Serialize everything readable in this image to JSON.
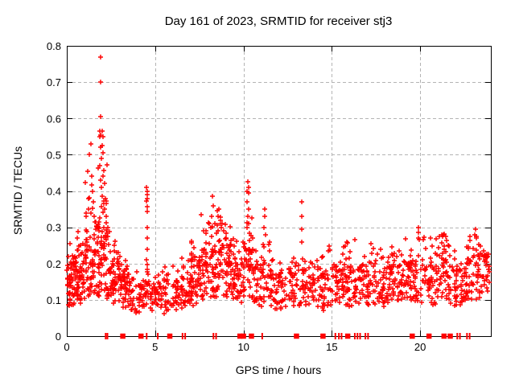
{
  "page": {
    "background": "#ffffff"
  },
  "chart_data": {
    "type": "scatter",
    "title": "Day 161 of 2023, SRMTID for receiver stj3",
    "xlabel": "GPS time / hours",
    "ylabel": "SRMTID / TECUs",
    "xlim": [
      0,
      24
    ],
    "ylim": [
      0,
      0.8
    ],
    "xticks": [
      0,
      5,
      10,
      15,
      20
    ],
    "xtick_labels": [
      "0",
      "5",
      "10",
      "15",
      "20"
    ],
    "yticks": [
      0,
      0.1,
      0.2,
      0.3,
      0.4,
      0.5,
      0.6,
      0.7,
      0.8
    ],
    "ytick_labels": [
      "0",
      "0.1",
      "0.2",
      "0.3",
      "0.4",
      "0.5",
      "0.6",
      "0.7",
      "0.8"
    ],
    "grid": true,
    "legend": false,
    "marker": {
      "shape": "plus",
      "color": "#ff0000",
      "size": 7
    },
    "grid_color": "#b4b4b4",
    "border_color": "#000000",
    "seed": 42,
    "outlier_points": [
      [
        1.9,
        0.77
      ],
      [
        1.9,
        0.7
      ],
      [
        1.9,
        0.605
      ],
      [
        1.88,
        0.565
      ],
      [
        1.93,
        0.555
      ],
      [
        1.86,
        0.55
      ],
      [
        1.9,
        0.52
      ],
      [
        1.36,
        0.53
      ],
      [
        1.29,
        0.5
      ],
      [
        1.17,
        0.455
      ],
      [
        1.06,
        0.424
      ],
      [
        1.4,
        0.44
      ],
      [
        1.45,
        0.4
      ],
      [
        1.21,
        0.38
      ],
      [
        1.5,
        0.37
      ],
      [
        1.25,
        0.35
      ],
      [
        1.38,
        0.34
      ],
      [
        1.1,
        0.33
      ],
      [
        2.02,
        0.565
      ],
      [
        2.05,
        0.55
      ],
      [
        2.0,
        0.525
      ],
      [
        2.07,
        0.505
      ],
      [
        2.1,
        0.457
      ],
      [
        2.06,
        0.44
      ],
      [
        1.95,
        0.49
      ],
      [
        1.85,
        0.47
      ],
      [
        2.15,
        0.42
      ],
      [
        1.98,
        0.41
      ],
      [
        1.9,
        0.43
      ],
      [
        2.2,
        0.38
      ],
      [
        2.12,
        0.35
      ],
      [
        2.25,
        0.33
      ],
      [
        2.3,
        0.3
      ],
      [
        4.52,
        0.41
      ],
      [
        4.54,
        0.4
      ],
      [
        4.55,
        0.39
      ],
      [
        4.57,
        0.38
      ],
      [
        4.53,
        0.372
      ],
      [
        4.55,
        0.357
      ],
      [
        4.56,
        0.343
      ],
      [
        4.54,
        0.3
      ],
      [
        4.55,
        0.27
      ],
      [
        4.56,
        0.24
      ],
      [
        4.53,
        0.21
      ],
      [
        4.55,
        0.185
      ],
      [
        8.26,
        0.385
      ],
      [
        8.3,
        0.36
      ],
      [
        8.5,
        0.345
      ],
      [
        8.55,
        0.33
      ],
      [
        8.6,
        0.35
      ],
      [
        8.2,
        0.33
      ],
      [
        8.4,
        0.31
      ],
      [
        8.7,
        0.32
      ],
      [
        8.75,
        0.3
      ],
      [
        8.15,
        0.3
      ],
      [
        8.9,
        0.29
      ],
      [
        9.0,
        0.27
      ],
      [
        7.9,
        0.29
      ],
      [
        8.05,
        0.31
      ],
      [
        10.25,
        0.425
      ],
      [
        10.27,
        0.41
      ],
      [
        10.22,
        0.4
      ],
      [
        10.3,
        0.395
      ],
      [
        10.2,
        0.37
      ],
      [
        10.28,
        0.35
      ],
      [
        10.24,
        0.33
      ],
      [
        10.3,
        0.31
      ],
      [
        10.2,
        0.3
      ],
      [
        11.2,
        0.35
      ],
      [
        11.22,
        0.33
      ],
      [
        11.18,
        0.3
      ],
      [
        11.25,
        0.28
      ],
      [
        13.3,
        0.37
      ],
      [
        13.28,
        0.33
      ],
      [
        13.32,
        0.295
      ],
      [
        13.3,
        0.26
      ],
      [
        19.9,
        0.3
      ],
      [
        19.92,
        0.285
      ],
      [
        19.88,
        0.27
      ],
      [
        20.6,
        0.27
      ],
      [
        21.3,
        0.28
      ],
      [
        16.3,
        0.265
      ],
      [
        17.2,
        0.255
      ],
      [
        23.15,
        0.295
      ],
      [
        23.1,
        0.28
      ],
      [
        23.2,
        0.27
      ]
    ],
    "noise_bands": [
      [
        0.0,
        0.5,
        70,
        0.08,
        0.2,
        0.26
      ],
      [
        0.5,
        1.0,
        55,
        0.09,
        0.18,
        0.3
      ],
      [
        1.0,
        1.6,
        60,
        0.1,
        0.25,
        0.42
      ],
      [
        1.6,
        2.3,
        85,
        0.1,
        0.3,
        0.48
      ],
      [
        2.3,
        3.0,
        70,
        0.09,
        0.2,
        0.3
      ],
      [
        3.0,
        3.6,
        55,
        0.08,
        0.17,
        0.22
      ],
      [
        3.6,
        4.4,
        45,
        0.06,
        0.14,
        0.18
      ],
      [
        4.4,
        4.7,
        15,
        0.08,
        0.16,
        0.2
      ],
      [
        4.7,
        5.5,
        45,
        0.06,
        0.14,
        0.18
      ],
      [
        5.5,
        6.5,
        55,
        0.07,
        0.15,
        0.2
      ],
      [
        6.5,
        7.5,
        55,
        0.08,
        0.16,
        0.22
      ],
      [
        7.0,
        7.6,
        25,
        0.12,
        0.22,
        0.3
      ],
      [
        7.5,
        8.5,
        80,
        0.1,
        0.24,
        0.34
      ],
      [
        8.5,
        9.3,
        70,
        0.1,
        0.25,
        0.33
      ],
      [
        9.3,
        10.0,
        55,
        0.09,
        0.2,
        0.27
      ],
      [
        10.0,
        10.6,
        50,
        0.1,
        0.24,
        0.33
      ],
      [
        10.6,
        11.5,
        55,
        0.08,
        0.2,
        0.28
      ],
      [
        11.5,
        12.5,
        60,
        0.07,
        0.17,
        0.22
      ],
      [
        12.5,
        13.6,
        60,
        0.08,
        0.18,
        0.24
      ],
      [
        13.6,
        14.8,
        65,
        0.07,
        0.17,
        0.24
      ],
      [
        14.8,
        15.8,
        60,
        0.08,
        0.18,
        0.25
      ],
      [
        15.8,
        17.0,
        70,
        0.08,
        0.19,
        0.27
      ],
      [
        17.0,
        18.0,
        60,
        0.08,
        0.18,
        0.25
      ],
      [
        18.0,
        19.0,
        65,
        0.09,
        0.19,
        0.26
      ],
      [
        19.0,
        19.8,
        55,
        0.09,
        0.2,
        0.28
      ],
      [
        19.8,
        20.9,
        60,
        0.08,
        0.2,
        0.28
      ],
      [
        20.9,
        21.7,
        55,
        0.1,
        0.22,
        0.285
      ],
      [
        21.7,
        22.6,
        55,
        0.08,
        0.18,
        0.24
      ],
      [
        22.6,
        23.4,
        55,
        0.1,
        0.22,
        0.29
      ],
      [
        23.4,
        23.9,
        35,
        0.12,
        0.22,
        0.26
      ]
    ],
    "zero_markers": {
      "squares": [
        3.17,
        4.2,
        5.83,
        9.8,
        10.0,
        10.45,
        13.0,
        14.5,
        15.9,
        19.55,
        20.5,
        21.35,
        21.7
      ],
      "bars": [
        2.2,
        2.3,
        4.52,
        5.15,
        6.55,
        6.7,
        8.3,
        8.45,
        11.06,
        15.2,
        15.4,
        15.55,
        16.3,
        16.45,
        16.6,
        16.9,
        17.05,
        22.1,
        22.25,
        22.65,
        22.8
      ]
    }
  }
}
